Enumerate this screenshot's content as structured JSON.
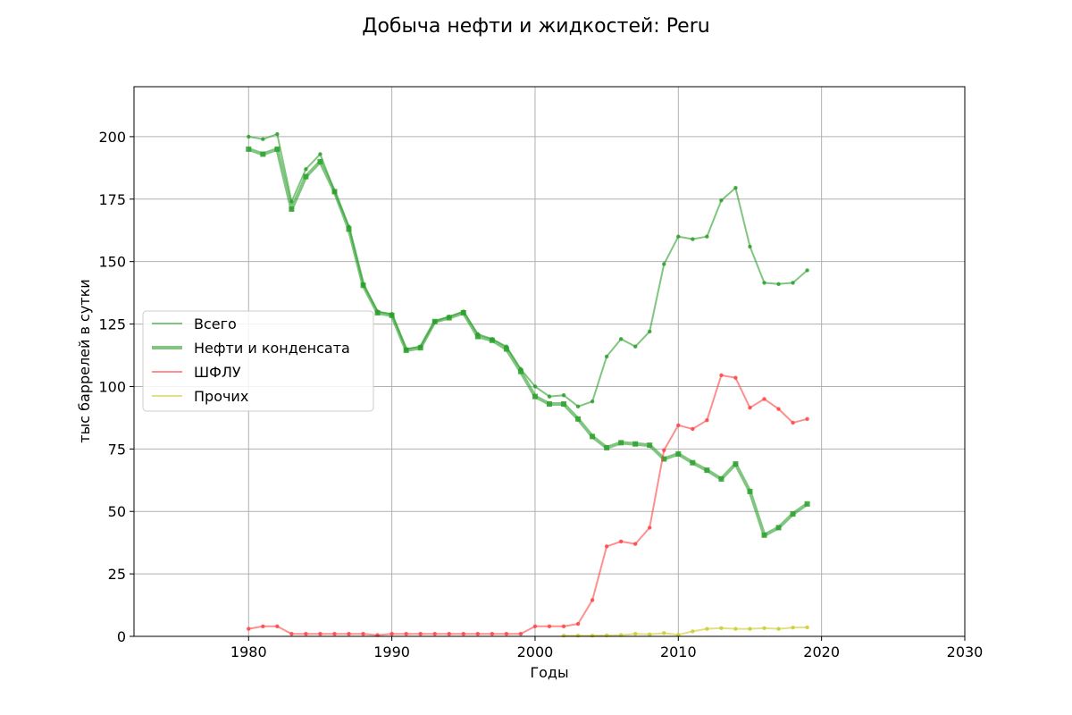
{
  "chart_data": {
    "type": "line",
    "title": "Добыча нефти и жидкостей: Peru",
    "xlabel": "Годы",
    "ylabel": "тыс баррелей в сутки",
    "xlim": [
      1972,
      2030
    ],
    "ylim": [
      0,
      220
    ],
    "x_ticks": [
      1980,
      1990,
      2000,
      2010,
      2020,
      2030
    ],
    "y_ticks": [
      0,
      25,
      50,
      75,
      100,
      125,
      150,
      175,
      200
    ],
    "grid": true,
    "legend_position": "center-left",
    "series": [
      {
        "name": "Всего",
        "color": "#2ca02c",
        "x": [
          1980,
          1981,
          1982,
          1983,
          1984,
          1985,
          1986,
          1987,
          1988,
          1989,
          1990,
          1991,
          1992,
          1993,
          1994,
          1995,
          1996,
          1997,
          1998,
          1999,
          2000,
          2001,
          2002,
          2003,
          2004,
          2005,
          2006,
          2007,
          2008,
          2009,
          2010,
          2011,
          2012,
          2013,
          2014,
          2015,
          2016,
          2017,
          2018,
          2019
        ],
        "y": [
          200,
          199,
          201,
          174,
          187,
          193,
          178,
          164,
          141,
          130,
          129,
          115,
          116,
          126,
          128,
          130,
          121,
          119,
          116,
          107,
          100,
          96,
          96.5,
          92,
          94,
          112,
          119,
          116,
          122,
          149,
          160,
          159,
          160,
          174.5,
          179.5,
          156,
          141.5,
          141,
          141.5,
          146.5
        ]
      },
      {
        "name": "Нефти и конденсата",
        "color": "#2ca02c",
        "x": [
          1980,
          1981,
          1982,
          1983,
          1984,
          1985,
          1986,
          1987,
          1988,
          1989,
          1990,
          1991,
          1992,
          1993,
          1994,
          1995,
          1996,
          1997,
          1998,
          1999,
          2000,
          2001,
          2002,
          2003,
          2004,
          2005,
          2006,
          2007,
          2008,
          2009,
          2010,
          2011,
          2012,
          2013,
          2014,
          2015,
          2016,
          2017,
          2018,
          2019
        ],
        "y": [
          195,
          193,
          195,
          171,
          184,
          190,
          178,
          163,
          140.5,
          129.5,
          128.5,
          114.5,
          115.5,
          126,
          127.5,
          129.5,
          120,
          118.5,
          115,
          106,
          96,
          93,
          93,
          87,
          80,
          75.5,
          77.5,
          77,
          76.5,
          71,
          73,
          69.5,
          66.5,
          63,
          69,
          58,
          40.5,
          43.5,
          49,
          53
        ]
      },
      {
        "name": "ШФЛУ",
        "color": "#ff4444",
        "x": [
          1980,
          1981,
          1982,
          1983,
          1984,
          1985,
          1986,
          1987,
          1988,
          1989,
          1990,
          1991,
          1992,
          1993,
          1994,
          1995,
          1996,
          1997,
          1998,
          1999,
          2000,
          2001,
          2002,
          2003,
          2004,
          2005,
          2006,
          2007,
          2008,
          2009,
          2010,
          2011,
          2012,
          2013,
          2014,
          2015,
          2016,
          2017,
          2018,
          2019
        ],
        "y": [
          3,
          4,
          4,
          1,
          1,
          1,
          1,
          1,
          1,
          0.5,
          1,
          1,
          1,
          1,
          1,
          1,
          1,
          1,
          1,
          1,
          4,
          4,
          4,
          5,
          14.5,
          36,
          38,
          37,
          43.5,
          74.5,
          84.5,
          83,
          86.5,
          104.5,
          103.5,
          91.5,
          95,
          91,
          85.5,
          87
        ]
      },
      {
        "name": "Прочих",
        "color": "#cccc33",
        "x": [
          2002,
          2003,
          2004,
          2005,
          2006,
          2007,
          2008,
          2009,
          2010,
          2011,
          2012,
          2013,
          2014,
          2015,
          2016,
          2017,
          2018,
          2019
        ],
        "y": [
          0.3,
          0.3,
          0.3,
          0.4,
          0.5,
          1,
          0.8,
          1.3,
          0.6,
          2,
          3,
          3.3,
          3,
          3,
          3.3,
          3,
          3.5,
          3.6
        ]
      }
    ]
  }
}
